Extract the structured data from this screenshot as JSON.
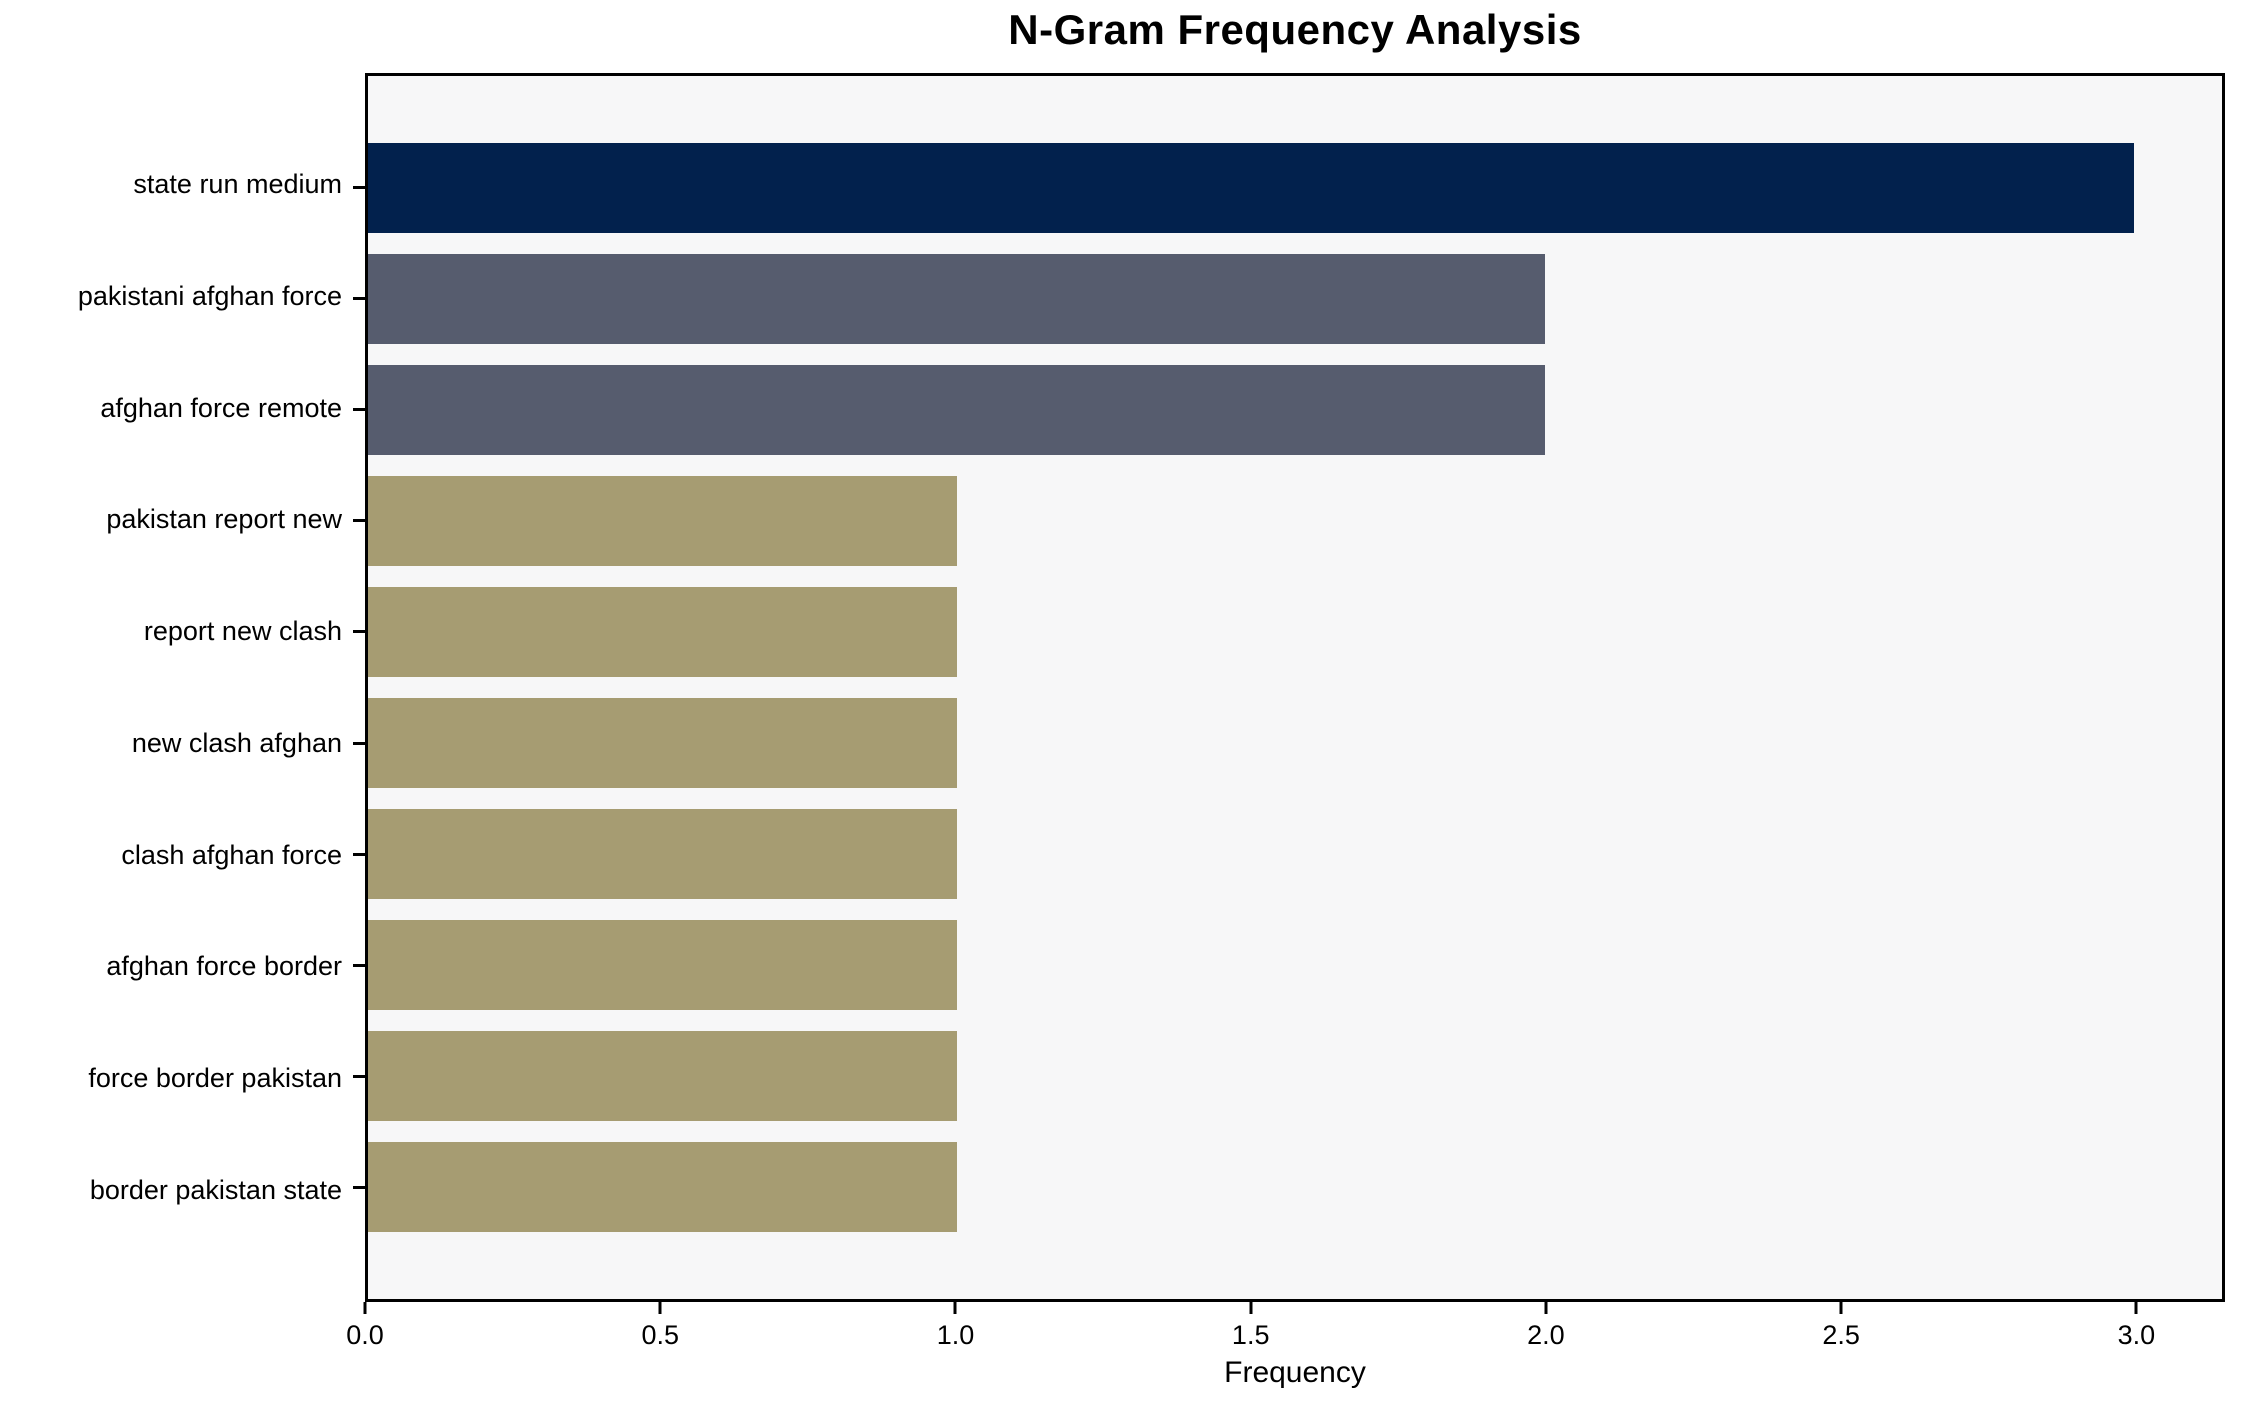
{
  "chart_data": {
    "type": "bar",
    "orientation": "horizontal",
    "title": "N-Gram Frequency Analysis",
    "categories": [
      "state run medium",
      "pakistani afghan force",
      "afghan force remote",
      "pakistan report new",
      "report new clash",
      "new clash afghan",
      "clash afghan force",
      "afghan force border",
      "force border pakistan",
      "border pakistan state"
    ],
    "values": [
      3,
      2,
      2,
      1,
      1,
      1,
      1,
      1,
      1,
      1
    ],
    "bar_colors": [
      "#02214d",
      "#565c6e",
      "#565c6e",
      "#a69c72",
      "#a69c72",
      "#a69c72",
      "#a69c72",
      "#a69c72",
      "#a69c72",
      "#a69c72"
    ],
    "xlabel": "Frequency",
    "ylabel": "",
    "x_ticks": [
      0.0,
      0.5,
      1.0,
      1.5,
      2.0,
      2.5,
      3.0
    ],
    "x_tick_labels": [
      "0.0",
      "0.5",
      "1.0",
      "1.5",
      "2.0",
      "2.5",
      "3.0"
    ],
    "xlim": [
      0,
      3.15
    ],
    "grid": false,
    "legend": "none",
    "plot_background": "#f7f7f8",
    "figure_background": "#ffffff",
    "axis_border_color": "#000000"
  }
}
